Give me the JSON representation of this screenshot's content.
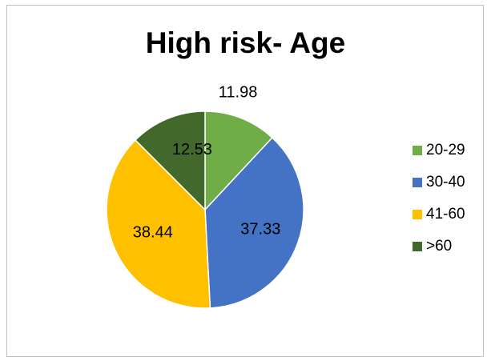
{
  "chart_data": {
    "type": "pie",
    "title": "High risk- Age",
    "categories": [
      "20-29",
      "30-40",
      "41-60",
      ">60"
    ],
    "values": [
      11.98,
      37.33,
      38.44,
      12.53
    ],
    "data_labels": [
      "11.98",
      "37.33",
      "38.44",
      "12.53"
    ],
    "colors": [
      "#70ad47",
      "#4472c4",
      "#ffc000",
      "#43682b"
    ],
    "legend_position": "right",
    "start_angle": "12 o'clock, clockwise"
  }
}
